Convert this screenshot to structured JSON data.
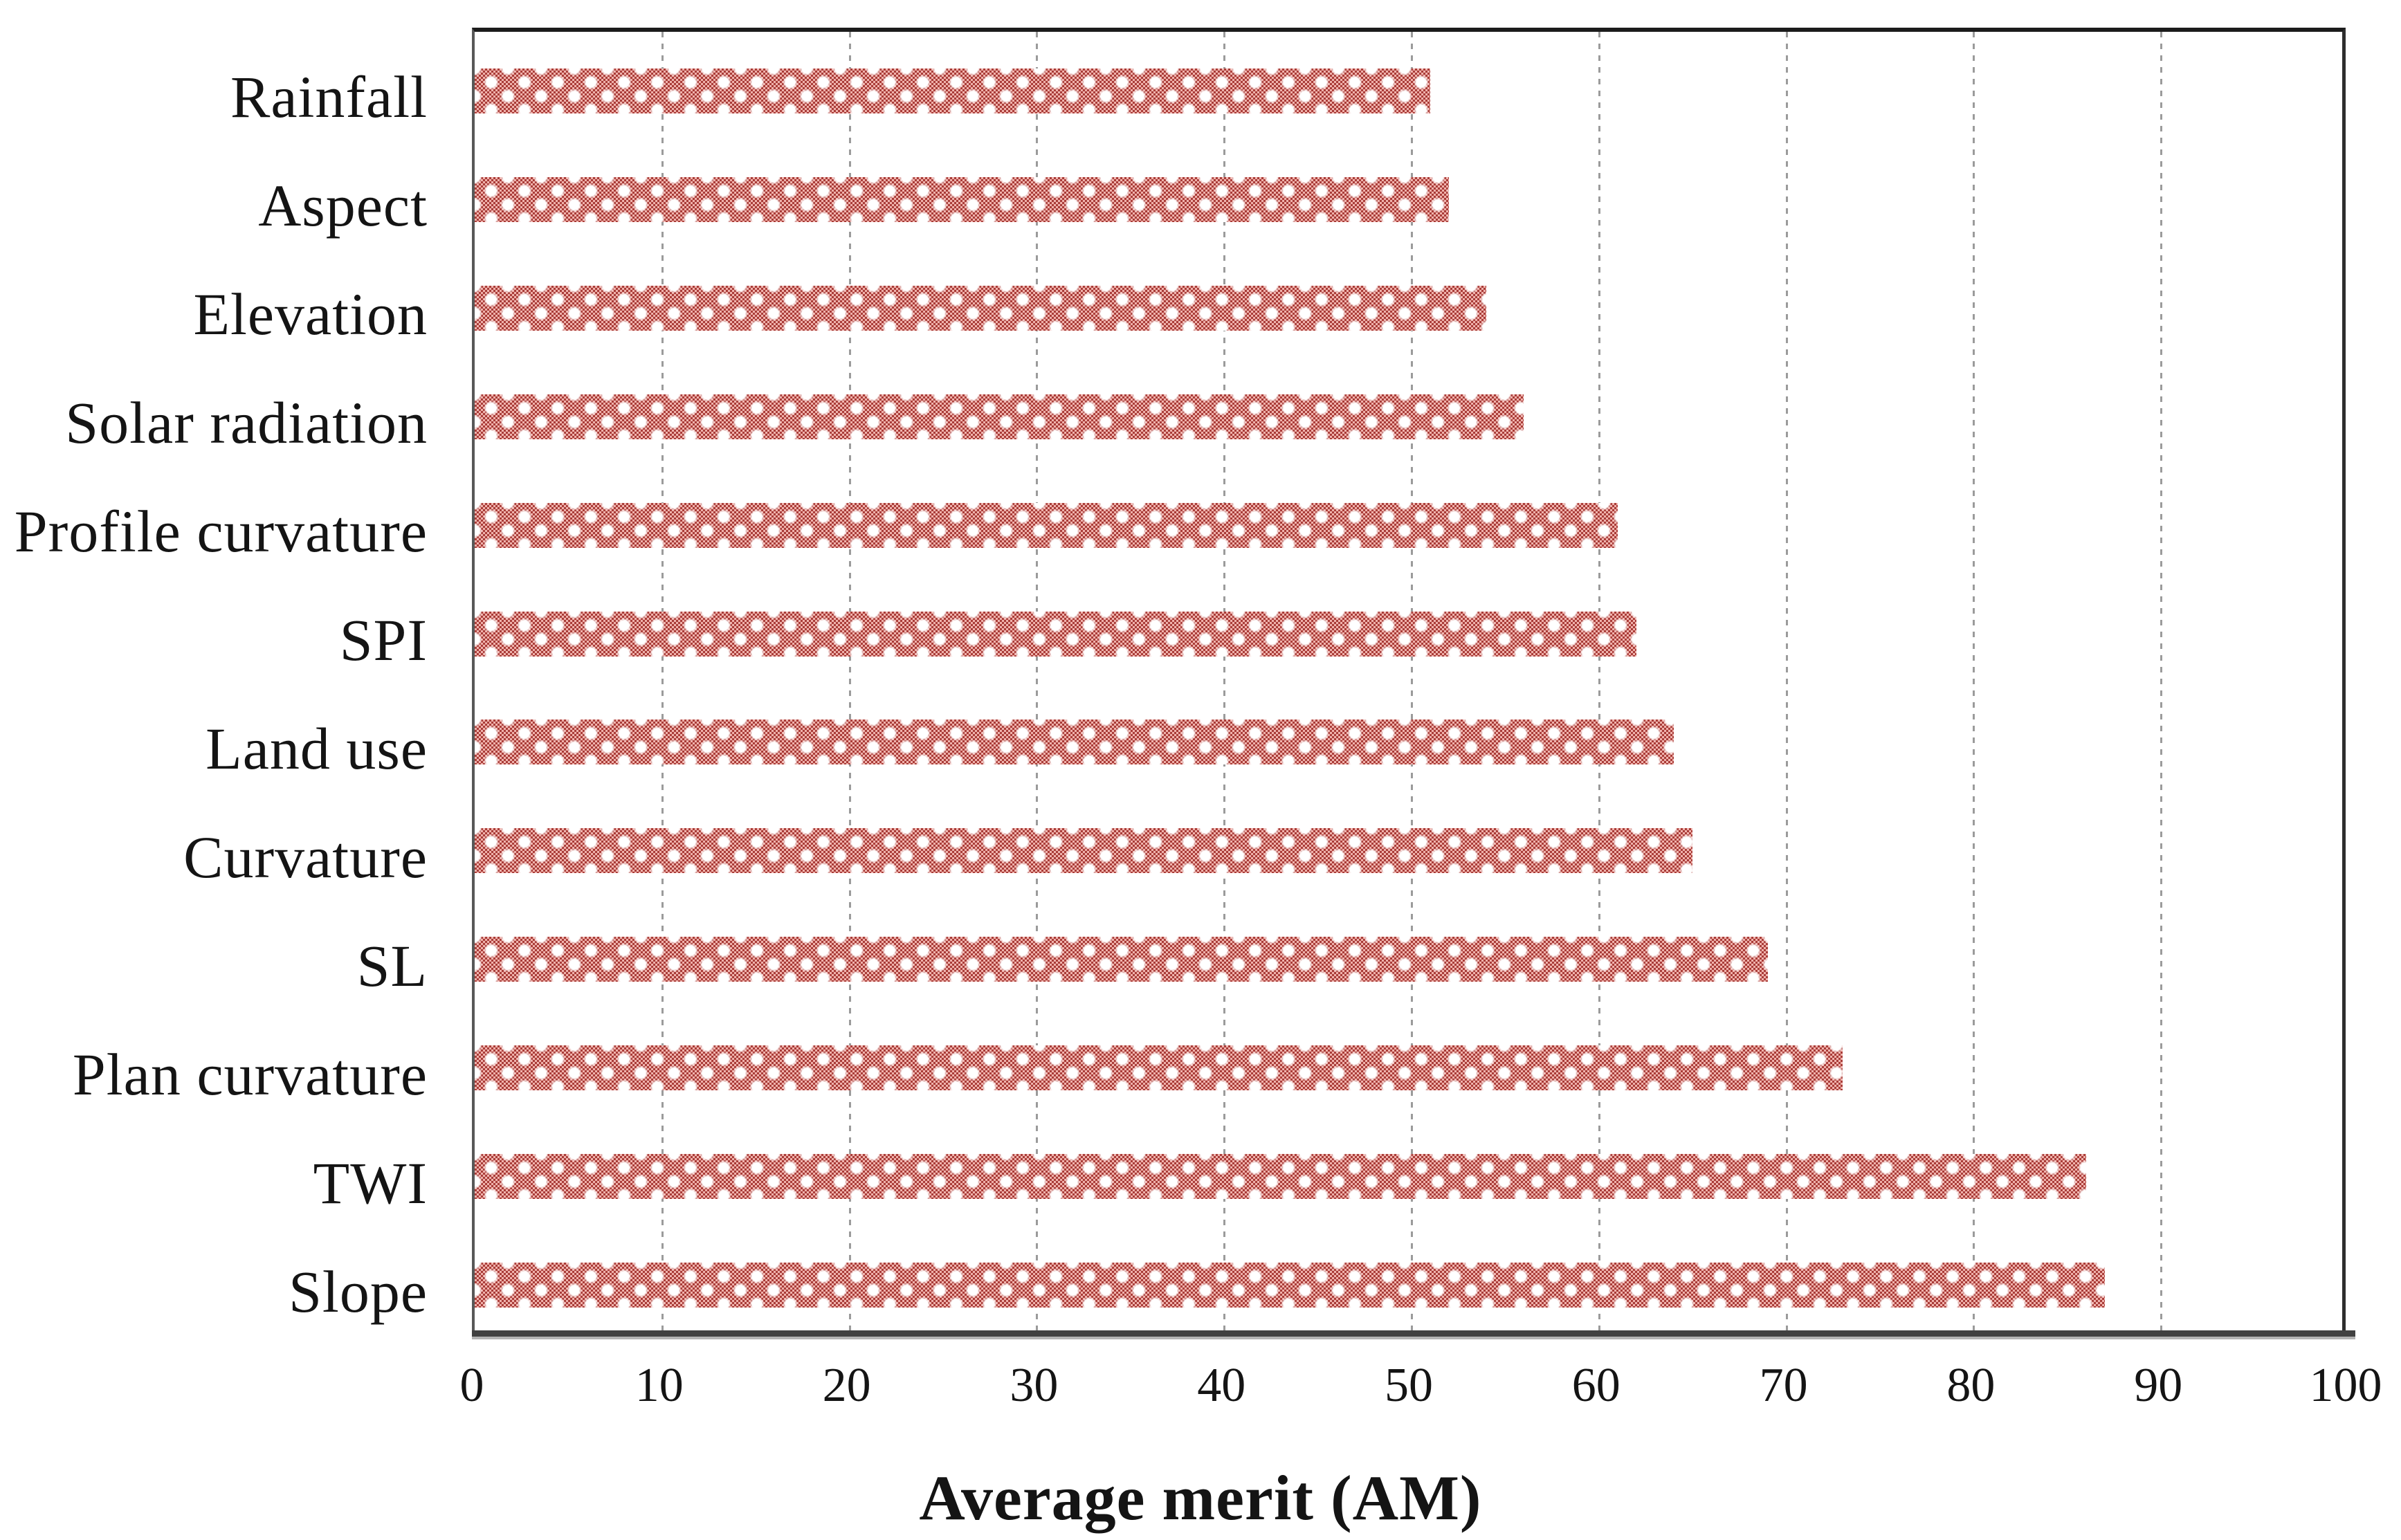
{
  "chart_data": {
    "type": "bar",
    "orientation": "horizontal",
    "title": "",
    "xlabel": "Average merit (AM)",
    "ylabel": "",
    "xlim": [
      0,
      100
    ],
    "xticks": [
      0,
      10,
      20,
      30,
      40,
      50,
      60,
      70,
      80,
      90,
      100
    ],
    "grid": "vertical dashed gridlines at every x tick",
    "legend_position": "none",
    "categories": [
      "Rainfall",
      "Aspect",
      "Elevation",
      "Solar radiation",
      "Profile curvature",
      "SPI",
      "Land use",
      "Curvature",
      "SL",
      "Plan curvature",
      "TWI",
      "Slope"
    ],
    "values": [
      51,
      52,
      54,
      56,
      61,
      62,
      64,
      65,
      69,
      73,
      86,
      87
    ],
    "bar_pattern": {
      "style": "dotted-diamond weave pattern fill",
      "light_red": "#f0b2ac",
      "dark_red": "#a93c38",
      "sparkle_white": "#ffffff"
    },
    "grid_color": "#9b9b9b",
    "axis_line_color": "#414141",
    "border_color": "#2e2e2e",
    "text_color": "#141414"
  }
}
